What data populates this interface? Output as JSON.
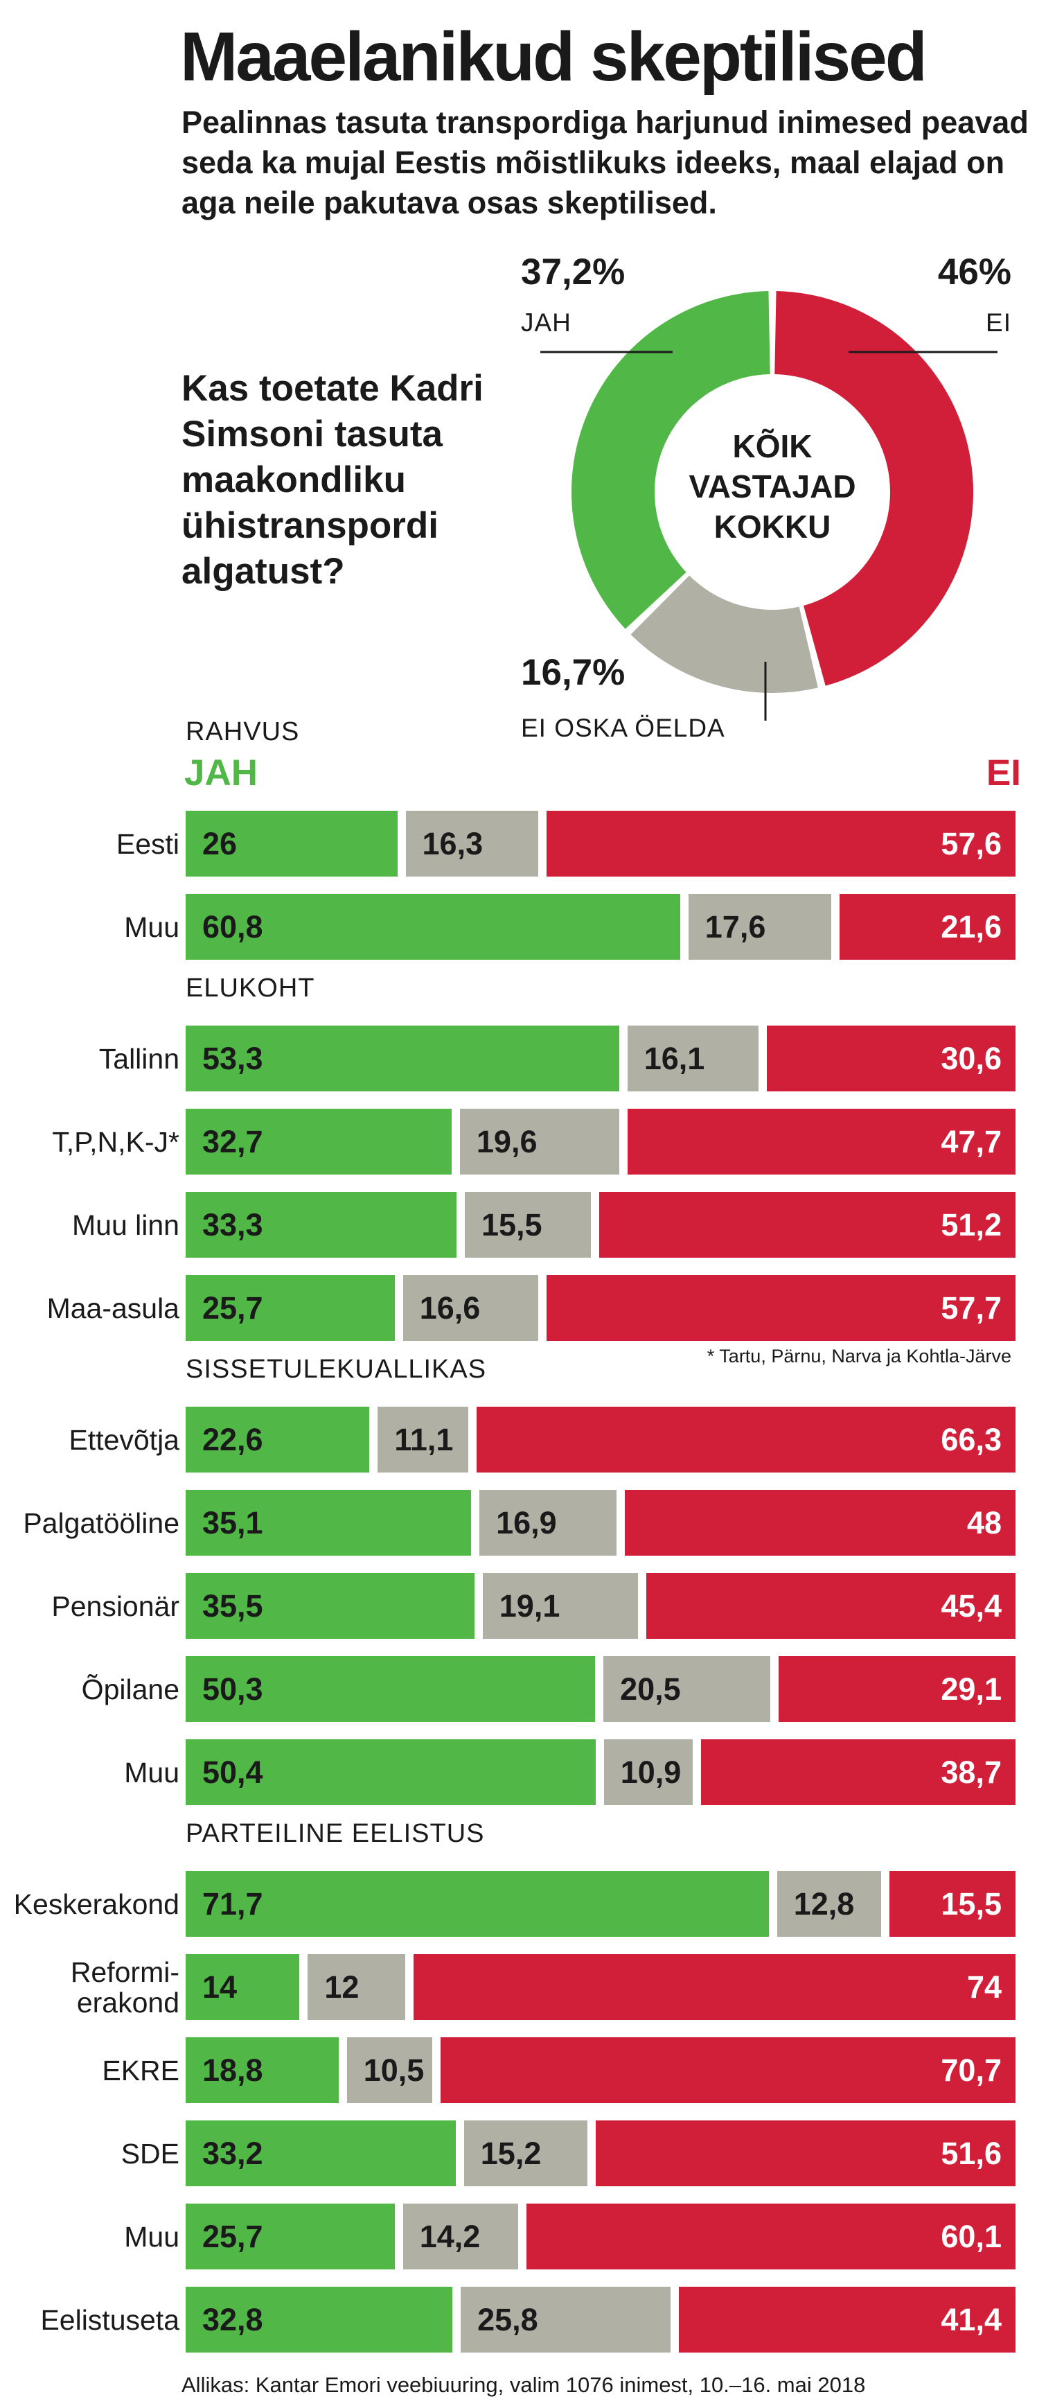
{
  "title": "Maaelanikud skeptilised",
  "subtitle": "Pealinnas tasuta transpordiga harjunud inimesed peavad seda ka mujal Eestis mõistlikuks ideeks, maal elajad on aga neile pakutava osas skeptilised.",
  "question": "Kas toetate Kadri Simsoni tasuta maakondliku ühistranspordi algatust?",
  "colors": {
    "jah": "#51b848",
    "ei_oska": "#b1b0a5",
    "ei": "#d11f3a",
    "text": "#1a1a1a"
  },
  "donut": {
    "center_lines": [
      "KÕIK",
      "VASTAJAD",
      "KOKKU"
    ],
    "jah": {
      "pct": "37,2%",
      "label": "JAH",
      "value": 37.2
    },
    "ei": {
      "pct": "46%",
      "label": "EI",
      "value": 46
    },
    "ei_oska": {
      "pct": "16,7%",
      "label": "EI OSKA ÖELDA",
      "value": 16.7
    }
  },
  "legend": {
    "jah": "JAH",
    "ei": "EI"
  },
  "footnote": "* Tartu, Pärnu, Narva ja Kohtla-Järve",
  "source": "Allikas: Kantar Emori veebiuuring, valim 1076 inimest, 10.–16. mai 2018",
  "chart_data": {
    "type": "bar",
    "stacked": true,
    "orientation": "horizontal",
    "title": "Kas toetate Kadri Simsoni tasuta maakondliku ühistranspordi algatust?",
    "series_names": [
      "JAH",
      "EI OSKA ÖELDA",
      "EI"
    ],
    "groups": [
      {
        "name": "RAHVUS",
        "rows": [
          {
            "label": "Eesti",
            "values": [
              26,
              16.3,
              57.6
            ],
            "texts": [
              "26",
              "16,3",
              "57,6"
            ]
          },
          {
            "label": "Muu",
            "values": [
              60.8,
              17.6,
              21.6
            ],
            "texts": [
              "60,8",
              "17,6",
              "21,6"
            ]
          }
        ]
      },
      {
        "name": "ELUKOHT",
        "rows": [
          {
            "label": "Tallinn",
            "values": [
              53.3,
              16.1,
              30.6
            ],
            "texts": [
              "53,3",
              "16,1",
              "30,6"
            ]
          },
          {
            "label": "T,P,N,K-J*",
            "values": [
              32.7,
              19.6,
              47.7
            ],
            "texts": [
              "32,7",
              "19,6",
              "47,7"
            ]
          },
          {
            "label": "Muu linn",
            "values": [
              33.3,
              15.5,
              51.2
            ],
            "texts": [
              "33,3",
              "15,5",
              "51,2"
            ]
          },
          {
            "label": "Maa-asula",
            "values": [
              25.7,
              16.6,
              57.7
            ],
            "texts": [
              "25,7",
              "16,6",
              "57,7"
            ]
          }
        ]
      },
      {
        "name": "SISSETULEKUALLIKAS",
        "rows": [
          {
            "label": "Ettevõtja",
            "values": [
              22.6,
              11.1,
              66.3
            ],
            "texts": [
              "22,6",
              "11,1",
              "66,3"
            ]
          },
          {
            "label": "Palgatööline",
            "values": [
              35.1,
              16.9,
              48
            ],
            "texts": [
              "35,1",
              "16,9",
              "48"
            ]
          },
          {
            "label": "Pensionär",
            "values": [
              35.5,
              19.1,
              45.4
            ],
            "texts": [
              "35,5",
              "19,1",
              "45,4"
            ]
          },
          {
            "label": "Õpilane",
            "values": [
              50.3,
              20.5,
              29.1
            ],
            "texts": [
              "50,3",
              "20,5",
              "29,1"
            ]
          },
          {
            "label": "Muu",
            "values": [
              50.4,
              10.9,
              38.7
            ],
            "texts": [
              "50,4",
              "10,9",
              "38,7"
            ]
          }
        ]
      },
      {
        "name": "PARTEILINE EELISTUS",
        "rows": [
          {
            "label": "Keskerakond",
            "values": [
              71.7,
              12.8,
              15.5
            ],
            "texts": [
              "71,7",
              "12,8",
              "15,5"
            ]
          },
          {
            "label": "Reformi-\nerakond",
            "values": [
              14,
              12,
              74
            ],
            "texts": [
              "14",
              "12",
              "74"
            ]
          },
          {
            "label": "EKRE",
            "values": [
              18.8,
              10.5,
              70.7
            ],
            "texts": [
              "18,8",
              "10,5",
              "70,7"
            ]
          },
          {
            "label": "SDE",
            "values": [
              33.2,
              15.2,
              51.6
            ],
            "texts": [
              "33,2",
              "15,2",
              "51,6"
            ]
          },
          {
            "label": "Muu",
            "values": [
              25.7,
              14.2,
              60.1
            ],
            "texts": [
              "25,7",
              "14,2",
              "60,1"
            ]
          },
          {
            "label": "Eelistuseta",
            "values": [
              32.8,
              25.8,
              41.4
            ],
            "texts": [
              "32,8",
              "25,8",
              "41,4"
            ]
          }
        ]
      }
    ]
  }
}
